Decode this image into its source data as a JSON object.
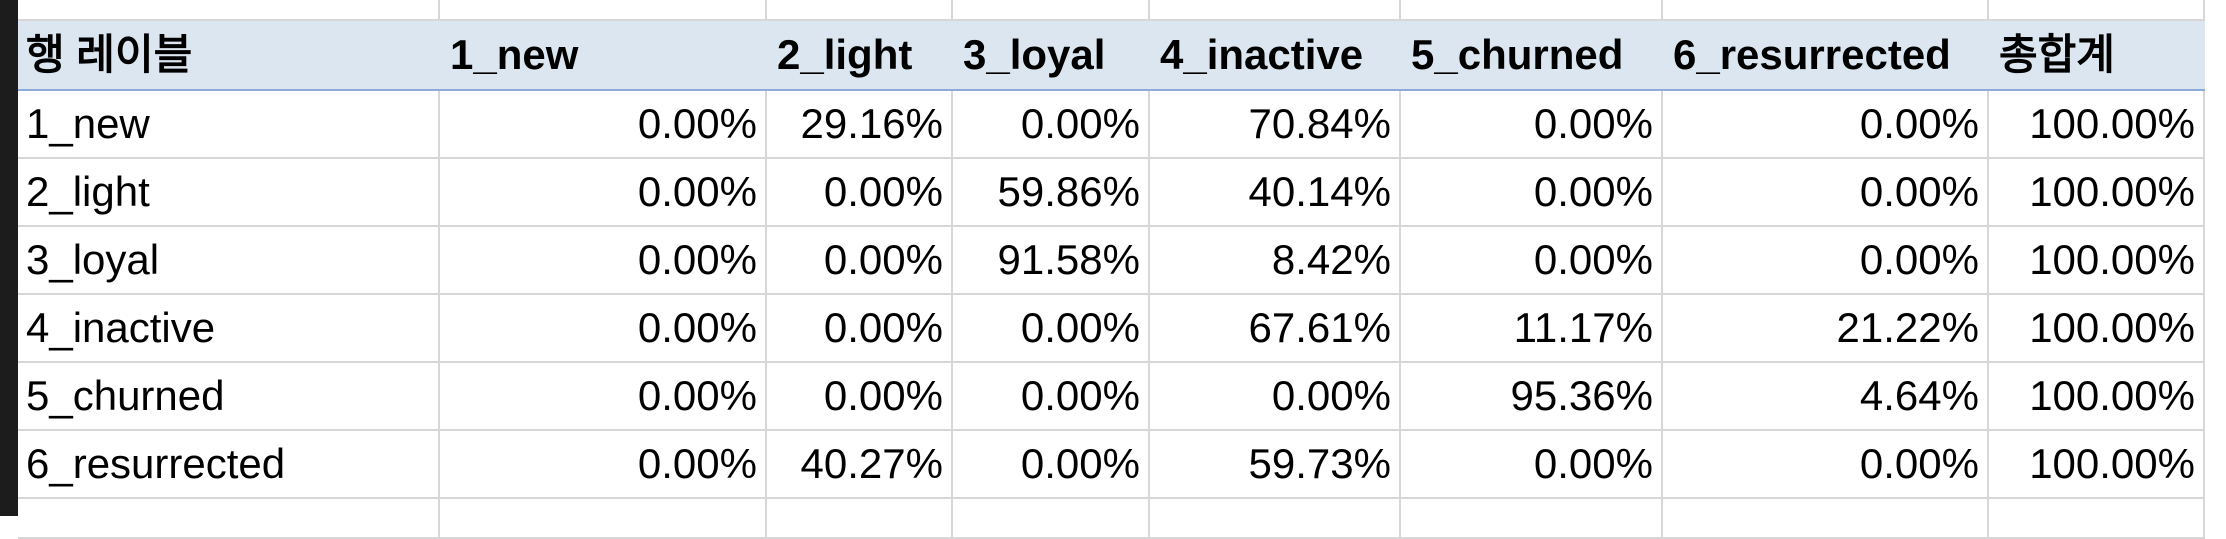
{
  "pivot": {
    "header": {
      "row_label": "행 레이블",
      "columns": [
        "1_new",
        "2_light",
        "3_loyal",
        "4_inactive",
        "5_churned",
        "6_resurrected",
        "총합계"
      ]
    },
    "rows": [
      {
        "label": "1_new",
        "values": [
          "0.00%",
          "29.16%",
          "0.00%",
          "70.84%",
          "0.00%",
          "0.00%",
          "100.00%"
        ]
      },
      {
        "label": "2_light",
        "values": [
          "0.00%",
          "0.00%",
          "59.86%",
          "40.14%",
          "0.00%",
          "0.00%",
          "100.00%"
        ]
      },
      {
        "label": "3_loyal",
        "values": [
          "0.00%",
          "0.00%",
          "91.58%",
          "8.42%",
          "0.00%",
          "0.00%",
          "100.00%"
        ]
      },
      {
        "label": "4_inactive",
        "values": [
          "0.00%",
          "0.00%",
          "0.00%",
          "67.61%",
          "11.17%",
          "21.22%",
          "100.00%"
        ]
      },
      {
        "label": "5_churned",
        "values": [
          "0.00%",
          "0.00%",
          "0.00%",
          "0.00%",
          "95.36%",
          "4.64%",
          "100.00%"
        ]
      },
      {
        "label": "6_resurrected",
        "values": [
          "0.00%",
          "40.27%",
          "0.00%",
          "59.73%",
          "0.00%",
          "0.00%",
          "100.00%"
        ]
      }
    ]
  },
  "colors": {
    "header_background": "#dce6f1",
    "header_border": "#8eaadb",
    "gridline": "#d7d7d7"
  }
}
